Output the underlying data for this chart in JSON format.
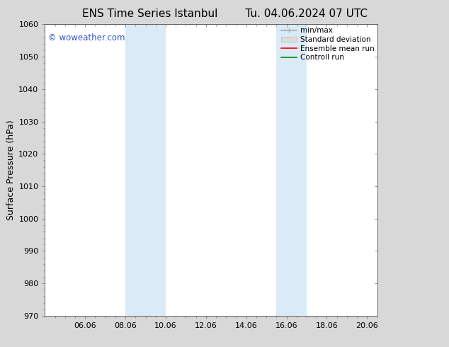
{
  "title_left": "ENS Time Series Istanbul",
  "title_right": "Tu. 04.06.2024 07 UTC",
  "ylabel": "Surface Pressure (hPa)",
  "ylim": [
    970,
    1060
  ],
  "yticks": [
    970,
    980,
    990,
    1000,
    1010,
    1020,
    1030,
    1040,
    1050,
    1060
  ],
  "xlim": [
    4.0,
    20.5
  ],
  "xtick_positions": [
    6,
    8,
    10,
    12,
    14,
    16,
    18,
    20
  ],
  "xtick_labels": [
    "06.06",
    "08.06",
    "10.06",
    "12.06",
    "14.06",
    "16.06",
    "18.06",
    "20.06"
  ],
  "shade_bands": [
    {
      "x_start": 8.0,
      "x_end": 10.0,
      "color": "#daeaf7"
    },
    {
      "x_start": 15.5,
      "x_end": 17.0,
      "color": "#daeaf7"
    }
  ],
  "watermark": "© woweather.com",
  "watermark_color": "#3355cc",
  "legend_labels": [
    "min/max",
    "Standard deviation",
    "Ensemble mean run",
    "Controll run"
  ],
  "legend_line_colors": [
    "#aaaaaa",
    "#cccccc",
    "#ff0000",
    "#008800"
  ],
  "fig_bg_color": "#d8d8d8",
  "plot_bg_color": "#ffffff",
  "title_fontsize": 11,
  "ylabel_fontsize": 9,
  "tick_fontsize": 8,
  "legend_fontsize": 7.5
}
